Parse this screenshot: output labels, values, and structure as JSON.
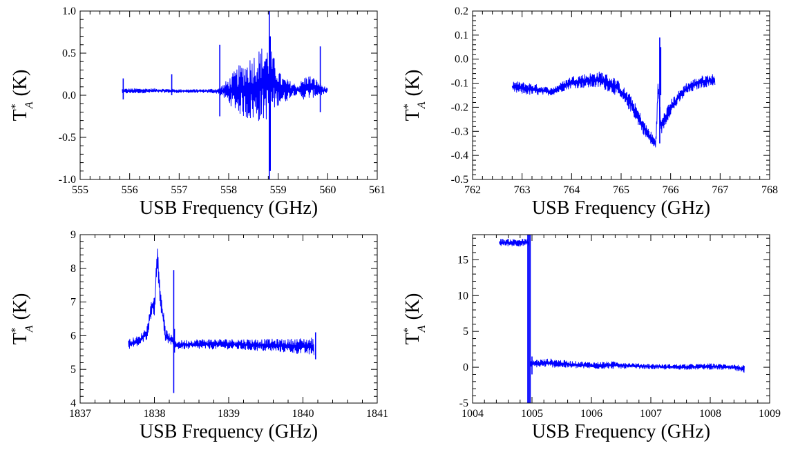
{
  "chart_data": [
    {
      "type": "line",
      "xlabel": "USB Frequency (GHz)",
      "ylabel": {
        "base": "T",
        "sup": "*",
        "sub": "A",
        "unit": "(K)"
      },
      "xlim": [
        555,
        561
      ],
      "ylim": [
        -1.0,
        1.0
      ],
      "xticks": [
        555,
        556,
        557,
        558,
        559,
        560,
        561
      ],
      "xtick_labels": [
        "555",
        "556",
        "557",
        "558",
        "559",
        "560",
        "561"
      ],
      "yticks": [
        -1.0,
        -0.5,
        0.0,
        0.5,
        1.0
      ],
      "ytick_labels": [
        "-1.0",
        "-0.5",
        "0.0",
        "0.5",
        "1.0"
      ],
      "color": "#0000ff",
      "series": [
        {
          "kind": "envelope",
          "x": [
            555.85,
            556.5,
            557.0,
            557.5,
            557.8,
            558.0,
            558.2,
            558.4,
            558.6,
            558.75,
            558.85,
            558.95,
            559.05,
            559.15,
            559.3,
            559.4,
            559.5,
            559.6,
            559.75,
            559.9,
            560.0
          ],
          "upper": [
            0.08,
            0.08,
            0.07,
            0.07,
            0.08,
            0.2,
            0.35,
            0.45,
            0.55,
            0.62,
            0.55,
            0.4,
            0.25,
            0.2,
            0.15,
            0.12,
            0.2,
            0.25,
            0.2,
            0.12,
            0.08
          ],
          "lower": [
            0.02,
            0.03,
            0.03,
            0.03,
            0.02,
            -0.1,
            -0.22,
            -0.3,
            -0.32,
            -0.3,
            -0.25,
            -0.15,
            -0.1,
            -0.08,
            0.0,
            0.0,
            -0.05,
            -0.05,
            -0.02,
            0.0,
            0.02
          ]
        },
        {
          "kind": "spikes",
          "x": [
            555.87,
            556.85,
            557.82,
            558.82,
            558.84,
            559.85
          ],
          "ymin": [
            -0.05,
            0.0,
            -0.25,
            -1.0,
            -0.9,
            -0.2
          ],
          "ymax": [
            0.2,
            0.25,
            0.6,
            1.0,
            0.7,
            0.58
          ]
        }
      ]
    },
    {
      "type": "line",
      "xlabel": "USB Frequency (GHz)",
      "ylabel": {
        "base": "T",
        "sup": "*",
        "sub": "A",
        "unit": "(K)"
      },
      "xlim": [
        762,
        768
      ],
      "ylim": [
        -0.5,
        0.2
      ],
      "xticks": [
        762,
        763,
        764,
        765,
        766,
        767,
        768
      ],
      "xtick_labels": [
        "762",
        "763",
        "764",
        "765",
        "766",
        "767",
        "768"
      ],
      "yticks": [
        -0.5,
        -0.4,
        -0.3,
        -0.2,
        -0.1,
        0.0,
        0.1,
        0.2
      ],
      "ytick_labels": [
        "-0.5",
        "-0.4",
        "-0.3",
        "-0.2",
        "-0.1",
        "0.0",
        "0.1",
        "0.2"
      ],
      "color": "#0000ff",
      "series": [
        {
          "kind": "envelope",
          "x": [
            762.8,
            763.2,
            763.6,
            764.0,
            764.3,
            764.6,
            764.9,
            765.2,
            765.5,
            765.7,
            765.75,
            765.8,
            766.0,
            766.3,
            766.6,
            766.9
          ],
          "upper": [
            -0.09,
            -0.1,
            -0.12,
            -0.07,
            -0.06,
            -0.05,
            -0.08,
            -0.15,
            -0.27,
            -0.33,
            -0.05,
            -0.25,
            -0.17,
            -0.1,
            -0.07,
            -0.06
          ],
          "lower": [
            -0.14,
            -0.15,
            -0.15,
            -0.12,
            -0.12,
            -0.12,
            -0.15,
            -0.22,
            -0.33,
            -0.38,
            -0.15,
            -0.32,
            -0.23,
            -0.15,
            -0.12,
            -0.11
          ]
        },
        {
          "kind": "spikes",
          "x": [
            765.78,
            765.8
          ],
          "ymin": [
            -0.35,
            -0.15
          ],
          "ymax": [
            0.09,
            0.05
          ]
        }
      ]
    },
    {
      "type": "line",
      "xlabel": "USB Frequency (GHz)",
      "ylabel": {
        "base": "T",
        "sup": "*",
        "sub": "A",
        "unit": "(K)"
      },
      "xlim": [
        1837,
        1841
      ],
      "ylim": [
        4,
        9
      ],
      "xticks": [
        1837,
        1838,
        1839,
        1840,
        1841
      ],
      "xtick_labels": [
        "1837",
        "1838",
        "1839",
        "1840",
        "1841"
      ],
      "yticks": [
        4,
        5,
        6,
        7,
        8,
        9
      ],
      "ytick_labels": [
        "4",
        "5",
        "6",
        "7",
        "8",
        "9"
      ],
      "color": "#0000ff",
      "series": [
        {
          "kind": "envelope",
          "x": [
            1837.65,
            1837.8,
            1837.9,
            1837.97,
            1838.0,
            1838.04,
            1838.08,
            1838.15,
            1838.3,
            1838.6,
            1839.0,
            1839.4,
            1839.8,
            1840.15
          ],
          "upper": [
            5.9,
            6.0,
            6.3,
            7.2,
            7.1,
            8.8,
            7.5,
            6.2,
            5.85,
            5.9,
            5.9,
            5.9,
            5.9,
            5.95
          ],
          "lower": [
            5.6,
            5.7,
            5.9,
            6.7,
            6.6,
            8.0,
            6.8,
            5.8,
            5.6,
            5.6,
            5.6,
            5.55,
            5.5,
            5.4
          ]
        },
        {
          "kind": "spikes",
          "x": [
            1838.26,
            1838.27,
            1840.17
          ],
          "ymin": [
            4.3,
            5.5,
            5.3
          ],
          "ymax": [
            7.95,
            6.2,
            6.1
          ]
        }
      ]
    },
    {
      "type": "line",
      "xlabel": "USB Frequency (GHz)",
      "ylabel": {
        "base": "T",
        "sup": "*",
        "sub": "A",
        "unit": "(K)"
      },
      "xlim": [
        1004,
        1009
      ],
      "ylim": [
        -5,
        18.5
      ],
      "xticks": [
        1004,
        1005,
        1006,
        1007,
        1008,
        1009
      ],
      "xtick_labels": [
        "1004",
        "1005",
        "1006",
        "1007",
        "1008",
        "1009"
      ],
      "yticks": [
        -5,
        0,
        5,
        10,
        15
      ],
      "ytick_labels": [
        "-5",
        "0",
        "5",
        "10",
        "15"
      ],
      "color": "#0000ff",
      "series": [
        {
          "kind": "envelope",
          "x": [
            1004.45,
            1004.95
          ],
          "upper": [
            17.9,
            17.9
          ],
          "lower": [
            16.9,
            16.9
          ]
        },
        {
          "kind": "envelope",
          "x": [
            1004.97,
            1005.3,
            1005.6,
            1006.0,
            1006.4,
            1006.8,
            1007.2,
            1007.6,
            1008.0,
            1008.4,
            1008.58
          ],
          "upper": [
            1.0,
            1.2,
            0.9,
            0.7,
            0.8,
            0.5,
            0.4,
            0.4,
            0.5,
            0.4,
            0.2
          ],
          "lower": [
            0.0,
            0.0,
            -0.1,
            -0.2,
            -0.2,
            -0.2,
            -0.3,
            -0.3,
            -0.3,
            -0.4,
            -0.9
          ]
        },
        {
          "kind": "spikes",
          "x": [
            1004.93,
            1004.95,
            1004.97,
            1005.0
          ],
          "ymin": [
            -5,
            -5,
            -5,
            -1
          ],
          "ymax": [
            18.5,
            18.5,
            18.5,
            1.5
          ]
        }
      ]
    }
  ]
}
